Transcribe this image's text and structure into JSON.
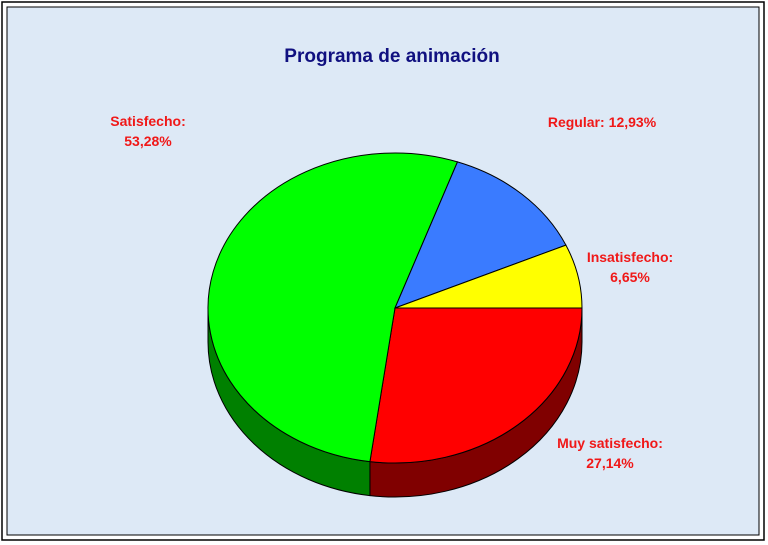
{
  "chart_data": {
    "type": "pie",
    "title": "Programa de animación",
    "categories": [
      "Muy satisfecho:",
      "Satisfecho:",
      "Regular:",
      "Insatisfecho:"
    ],
    "values": [
      27.14,
      53.28,
      12.93,
      6.65
    ],
    "value_labels": [
      "27,14%",
      "53,28%",
      "12,93%",
      "6,65%"
    ],
    "colors": [
      "#ff0000",
      "#00ff00",
      "#3a7bff",
      "#ffff00"
    ]
  }
}
